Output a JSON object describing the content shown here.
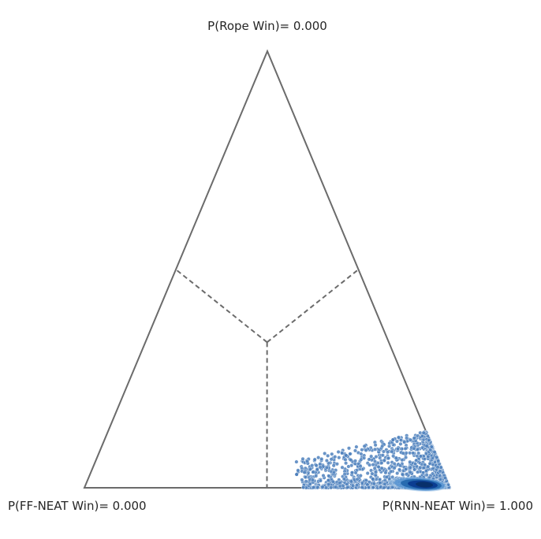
{
  "chart_data": {
    "type": "scatter",
    "subtype": "ternary-simplex",
    "vertex_labels": {
      "top": "P(Rope Win)= 0.000",
      "left": "P(FF-NEAT Win)= 0.000",
      "right": "P(RNN-NEAT Win)= 1.000"
    },
    "components": [
      "P(FF-NEAT Win)",
      "P(RNN-NEAT Win)",
      "P(Rope Win)"
    ],
    "region_boundaries": "dashed lines from centroid to edge midpoints",
    "samples": {
      "color": "#4f81bd",
      "center": {
        "p_ff": 0.02,
        "p_rnn": 0.97,
        "p_rope": 0.01
      },
      "spread": {
        "p_ff_max": 0.4,
        "p_rope_max": 0.13
      },
      "density": "very dense near the RNN-NEAT vertex, shown as dark-blue contour"
    },
    "colors": {
      "frame": "#6b6b6b",
      "points": "#4f81bd",
      "density_dark": "#0b3d91"
    },
    "grid": false
  }
}
